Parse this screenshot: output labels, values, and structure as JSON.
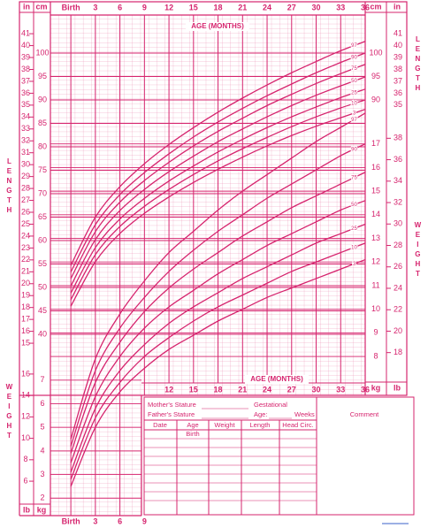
{
  "chart_data": [
    {
      "type": "line",
      "xlabel": "AGE (MONTHS)",
      "ylabel": "LENGTH",
      "unit": "cm",
      "y2unit": "in",
      "x": [
        0,
        3,
        6,
        9,
        12,
        15,
        18,
        21,
        24,
        27,
        30,
        33,
        36
      ],
      "xlim": [
        -2.5,
        36
      ],
      "xticks": [
        {
          "value": 0,
          "label": "Birth"
        },
        3,
        6,
        9,
        12,
        15,
        18,
        21,
        24,
        27,
        30,
        33,
        36
      ],
      "ylim": [
        36.5,
        107
      ],
      "yticks": [
        40,
        45,
        50,
        55,
        60,
        65,
        70,
        75,
        80,
        85,
        90,
        95,
        100
      ],
      "y2lim": [
        14.37,
        42.13
      ],
      "y2ticks": [
        15,
        16,
        17,
        18,
        19,
        20,
        21,
        22,
        23,
        24,
        25,
        26,
        27,
        28,
        29,
        30,
        31,
        32,
        33,
        34,
        35,
        36,
        37,
        38,
        39,
        40,
        41
      ],
      "grid": true,
      "series": [
        {
          "name": "97",
          "color": "#d6246e",
          "values": [
            54.7,
            65,
            71.5,
            76.4,
            80.5,
            84.1,
            87.4,
            90.4,
            93.2,
            95.8,
            98.2,
            100.5,
            102.5
          ]
        },
        {
          "name": "90",
          "color": "#d6246e",
          "values": [
            53.3,
            63.4,
            69.8,
            74.5,
            78.5,
            82.1,
            85.3,
            88.2,
            90.9,
            93.4,
            95.8,
            98,
            100
          ]
        },
        {
          "name": "75",
          "color": "#d6246e",
          "values": [
            51.9,
            61.9,
            68.2,
            72.8,
            76.7,
            80.2,
            83.3,
            86.1,
            88.8,
            91.2,
            93.5,
            95.6,
            97.6
          ]
        },
        {
          "name": "50",
          "color": "#d6246e",
          "values": [
            50.3,
            60.2,
            66.4,
            70.9,
            74.7,
            78,
            81.1,
            83.8,
            86.4,
            88.8,
            91,
            93,
            94.9
          ]
        },
        {
          "name": "25",
          "color": "#d6246e",
          "values": [
            48.8,
            58.5,
            64.6,
            69,
            72.7,
            75.9,
            78.9,
            81.6,
            84.1,
            86.4,
            88.5,
            90.5,
            92.3
          ]
        },
        {
          "name": "10",
          "color": "#d6246e",
          "values": [
            47.4,
            57,
            63,
            67.3,
            70.9,
            74.1,
            77,
            79.6,
            82,
            84.3,
            86.4,
            88.3,
            90
          ]
        },
        {
          "name": "3",
          "color": "#d6246e",
          "values": [
            46,
            55.5,
            61.5,
            65.8,
            69.3,
            72.4,
            75.2,
            77.8,
            80.2,
            82.4,
            84.4,
            86.2,
            88
          ]
        }
      ]
    },
    {
      "type": "line",
      "xlabel": "AGE (MONTHS)",
      "ylabel": "WEIGHT",
      "unit": "kg",
      "y2unit": "lb",
      "x": [
        0,
        3,
        6,
        9,
        12,
        15,
        18,
        21,
        24,
        27,
        30,
        33,
        36
      ],
      "xlim": [
        -2.5,
        36
      ],
      "xticks": [
        {
          "value": 0,
          "label": "Birth"
        },
        3,
        6,
        9,
        12,
        15,
        18,
        21,
        24,
        27,
        30,
        33,
        36
      ],
      "ylim": [
        1.3,
        18.2
      ],
      "yticks": [
        2,
        3,
        4,
        5,
        6,
        7,
        8,
        9,
        10,
        11,
        12,
        13,
        14,
        15,
        16,
        17
      ],
      "y2lim": [
        2.87,
        40.12
      ],
      "y2ticks": [
        6,
        8,
        10,
        12,
        14,
        16,
        18,
        20,
        22,
        24,
        26,
        28,
        30,
        32,
        34,
        36,
        38
      ],
      "grid": true,
      "series": [
        {
          "name": "97",
          "color": "#d6246e",
          "values": [
            4.5,
            7.9,
            9.8,
            11.2,
            12.4,
            13.3,
            14.2,
            15,
            15.7,
            16.4,
            17.1,
            17.7,
            18.3
          ]
        },
        {
          "name": "90",
          "color": "#d6246e",
          "values": [
            4.2,
            7.4,
            9.2,
            10.5,
            11.6,
            12.5,
            13.3,
            14,
            14.7,
            15.3,
            15.9,
            16.5,
            17
          ]
        },
        {
          "name": "75",
          "color": "#d6246e",
          "values": [
            3.9,
            6.9,
            8.6,
            9.9,
            10.9,
            11.7,
            12.4,
            13.1,
            13.7,
            14.3,
            14.8,
            15.3,
            15.8
          ]
        },
        {
          "name": "50",
          "color": "#d6246e",
          "values": [
            3.5,
            6.3,
            8,
            9.2,
            10.1,
            10.8,
            11.5,
            12.1,
            12.7,
            13.2,
            13.7,
            14.2,
            14.6
          ]
        },
        {
          "name": "25",
          "color": "#d6246e",
          "values": [
            3.1,
            5.8,
            7.4,
            8.5,
            9.4,
            10.1,
            10.7,
            11.3,
            11.8,
            12.3,
            12.8,
            13.2,
            13.6
          ]
        },
        {
          "name": "10",
          "color": "#d6246e",
          "values": [
            2.8,
            5.4,
            6.9,
            8,
            8.8,
            9.5,
            10.1,
            10.6,
            11.1,
            11.6,
            12,
            12.4,
            12.8
          ]
        },
        {
          "name": "3",
          "color": "#d6246e",
          "values": [
            2.5,
            5,
            6.5,
            7.5,
            8.3,
            8.9,
            9.5,
            10,
            10.5,
            10.9,
            11.3,
            11.7,
            12.1
          ]
        }
      ]
    }
  ],
  "form": {
    "mothers_stature": "Mother's Stature",
    "fathers_stature": "Father's Stature",
    "gestational": "Gestational",
    "age": "Age:",
    "weeks": "Weeks",
    "comment": "Comment",
    "columns": [
      "Date",
      "Age",
      "Weight",
      "Length",
      "Head Circ."
    ],
    "birth": "Birth"
  }
}
